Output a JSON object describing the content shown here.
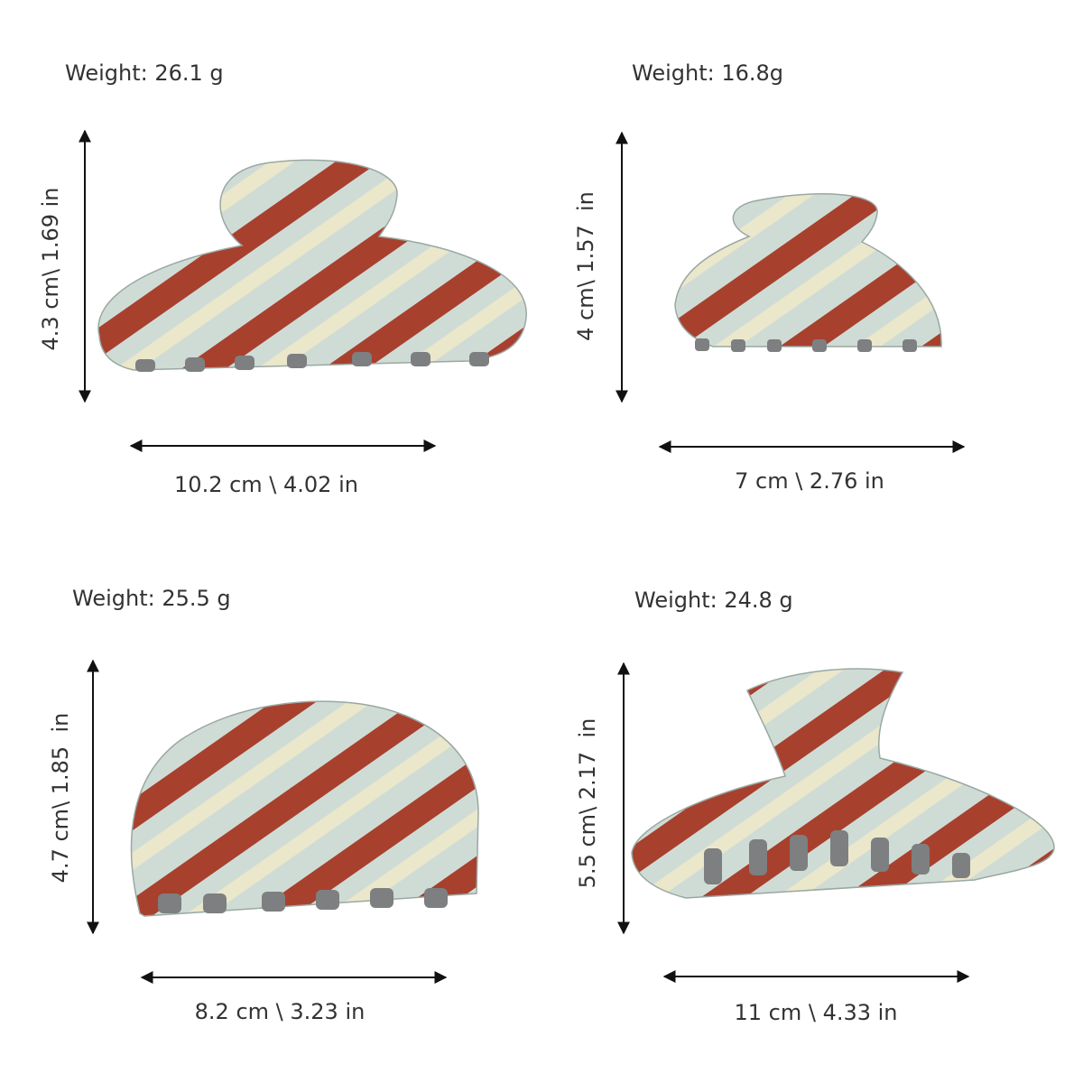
{
  "items": [
    {
      "weight": "Weight: 26.1 g",
      "height": "4.3 cm\\ 1.69 in",
      "width": "10.2 cm \\ 4.02 in"
    },
    {
      "weight": "Weight: 16.8g",
      "height": "4 cm\\ 1.57  in",
      "width": "7 cm \\ 2.76 in"
    },
    {
      "weight": "Weight: 25.5 g",
      "height": "4.7 cm\\ 1.85  in",
      "width": "8.2 cm \\ 3.23 in"
    },
    {
      "weight": "Weight: 24.8 g",
      "height": "5.5 cm\\ 2.17  in",
      "width": "11 cm \\ 4.33 in"
    }
  ]
}
